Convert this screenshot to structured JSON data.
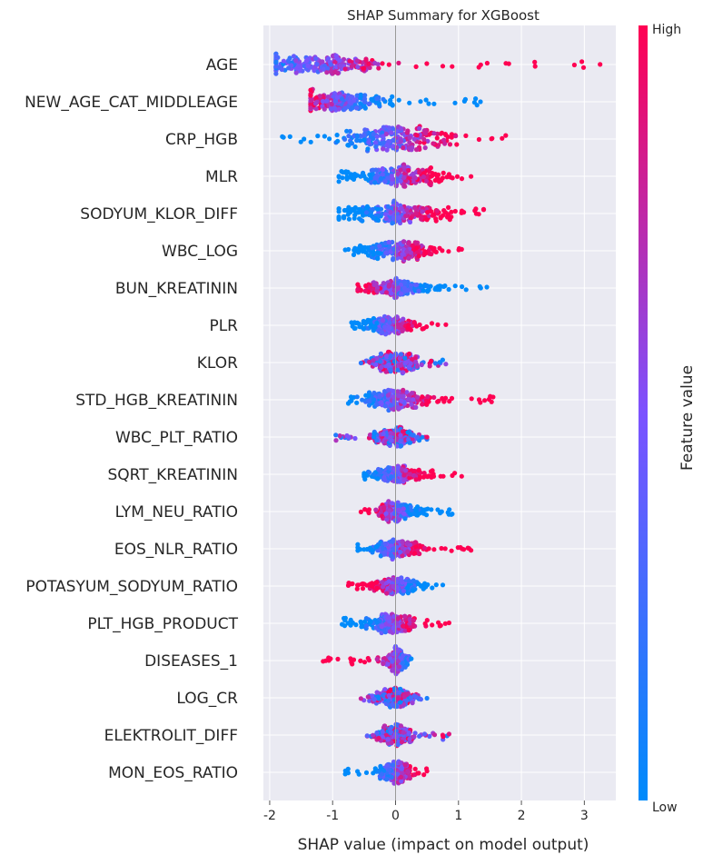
{
  "chart_data": {
    "type": "scatter",
    "title": "SHAP Summary for XGBoost",
    "xlabel": "SHAP value (impact on model output)",
    "ylabel": "",
    "xlim": [
      -2.1,
      3.5
    ],
    "xticks": [
      -2,
      -1,
      0,
      1,
      2,
      3
    ],
    "grid": true,
    "colorbar": {
      "label": "Feature value",
      "high_label": "High",
      "low_label": "Low",
      "high_color": "#ff0052",
      "low_color": "#008bfb"
    },
    "features": [
      {
        "name": "AGE",
        "min": -1.9,
        "max": 3.25,
        "center": -1.2,
        "spread": 0.55,
        "peak": 0.55,
        "hi_side": 1
      },
      {
        "name": "NEW_AGE_CAT_MIDDLEAGE",
        "min": -1.35,
        "max": 1.35,
        "center": -0.9,
        "spread": 0.35,
        "peak": 0.65,
        "hi_side": -1
      },
      {
        "name": "CRP_HGB",
        "min": -1.8,
        "max": 1.75,
        "center": 0.0,
        "spread": 0.45,
        "peak": 0.65,
        "hi_side": 1
      },
      {
        "name": "MLR",
        "min": -0.9,
        "max": 1.2,
        "center": 0.0,
        "spread": 0.4,
        "peak": 0.6,
        "hi_side": 1
      },
      {
        "name": "SODYUM_KLOR_DIFF",
        "min": -0.9,
        "max": 1.4,
        "center": 0.05,
        "spread": 0.45,
        "peak": 0.65,
        "hi_side": 1
      },
      {
        "name": "WBC_LOG",
        "min": -0.8,
        "max": 1.05,
        "center": 0.05,
        "spread": 0.3,
        "peak": 0.5,
        "hi_side": 1
      },
      {
        "name": "BUN_KREATININ",
        "min": -0.6,
        "max": 1.45,
        "center": 0.0,
        "spread": 0.28,
        "peak": 0.45,
        "hi_side": -1
      },
      {
        "name": "PLR",
        "min": -0.7,
        "max": 0.8,
        "center": -0.1,
        "spread": 0.22,
        "peak": 0.45,
        "hi_side": 1
      },
      {
        "name": "KLOR",
        "min": -0.55,
        "max": 0.8,
        "center": 0.0,
        "spread": 0.2,
        "peak": 0.55,
        "hi_side": 0
      },
      {
        "name": "STD_HGB_KREATININ",
        "min": -0.75,
        "max": 1.55,
        "center": 0.0,
        "spread": 0.25,
        "peak": 0.5,
        "hi_side": 1
      },
      {
        "name": "WBC_PLT_RATIO",
        "min": -0.95,
        "max": 0.5,
        "center": 0.0,
        "spread": 0.18,
        "peak": 0.5,
        "hi_side": 0
      },
      {
        "name": "SQRT_KREATININ",
        "min": -0.5,
        "max": 1.05,
        "center": 0.0,
        "spread": 0.2,
        "peak": 0.45,
        "hi_side": 1
      },
      {
        "name": "LYM_NEU_RATIO",
        "min": -0.55,
        "max": 0.9,
        "center": 0.0,
        "spread": 0.2,
        "peak": 0.5,
        "hi_side": -1
      },
      {
        "name": "EOS_NLR_RATIO",
        "min": -0.6,
        "max": 1.2,
        "center": 0.0,
        "spread": 0.2,
        "peak": 0.5,
        "hi_side": 1
      },
      {
        "name": "POTASYUM_SODYUM_RATIO",
        "min": -0.75,
        "max": 0.75,
        "center": 0.0,
        "spread": 0.2,
        "peak": 0.4,
        "hi_side": -1
      },
      {
        "name": "PLT_HGB_PRODUCT",
        "min": -0.85,
        "max": 0.85,
        "center": -0.05,
        "spread": 0.2,
        "peak": 0.5,
        "hi_side": 1
      },
      {
        "name": "DISEASES_1",
        "min": -1.15,
        "max": 0.25,
        "center": 0.02,
        "spread": 0.08,
        "peak": 0.75,
        "hi_side": -1
      },
      {
        "name": "LOG_CR",
        "min": -0.55,
        "max": 0.5,
        "center": 0.0,
        "spread": 0.15,
        "peak": 0.5,
        "hi_side": 0
      },
      {
        "name": "ELEKTROLIT_DIFF",
        "min": -0.45,
        "max": 0.85,
        "center": 0.0,
        "spread": 0.15,
        "peak": 0.55,
        "hi_side": 0
      },
      {
        "name": "MON_EOS_RATIO",
        "min": -0.8,
        "max": 0.5,
        "center": 0.0,
        "spread": 0.12,
        "peak": 0.55,
        "hi_side": 1
      }
    ]
  }
}
